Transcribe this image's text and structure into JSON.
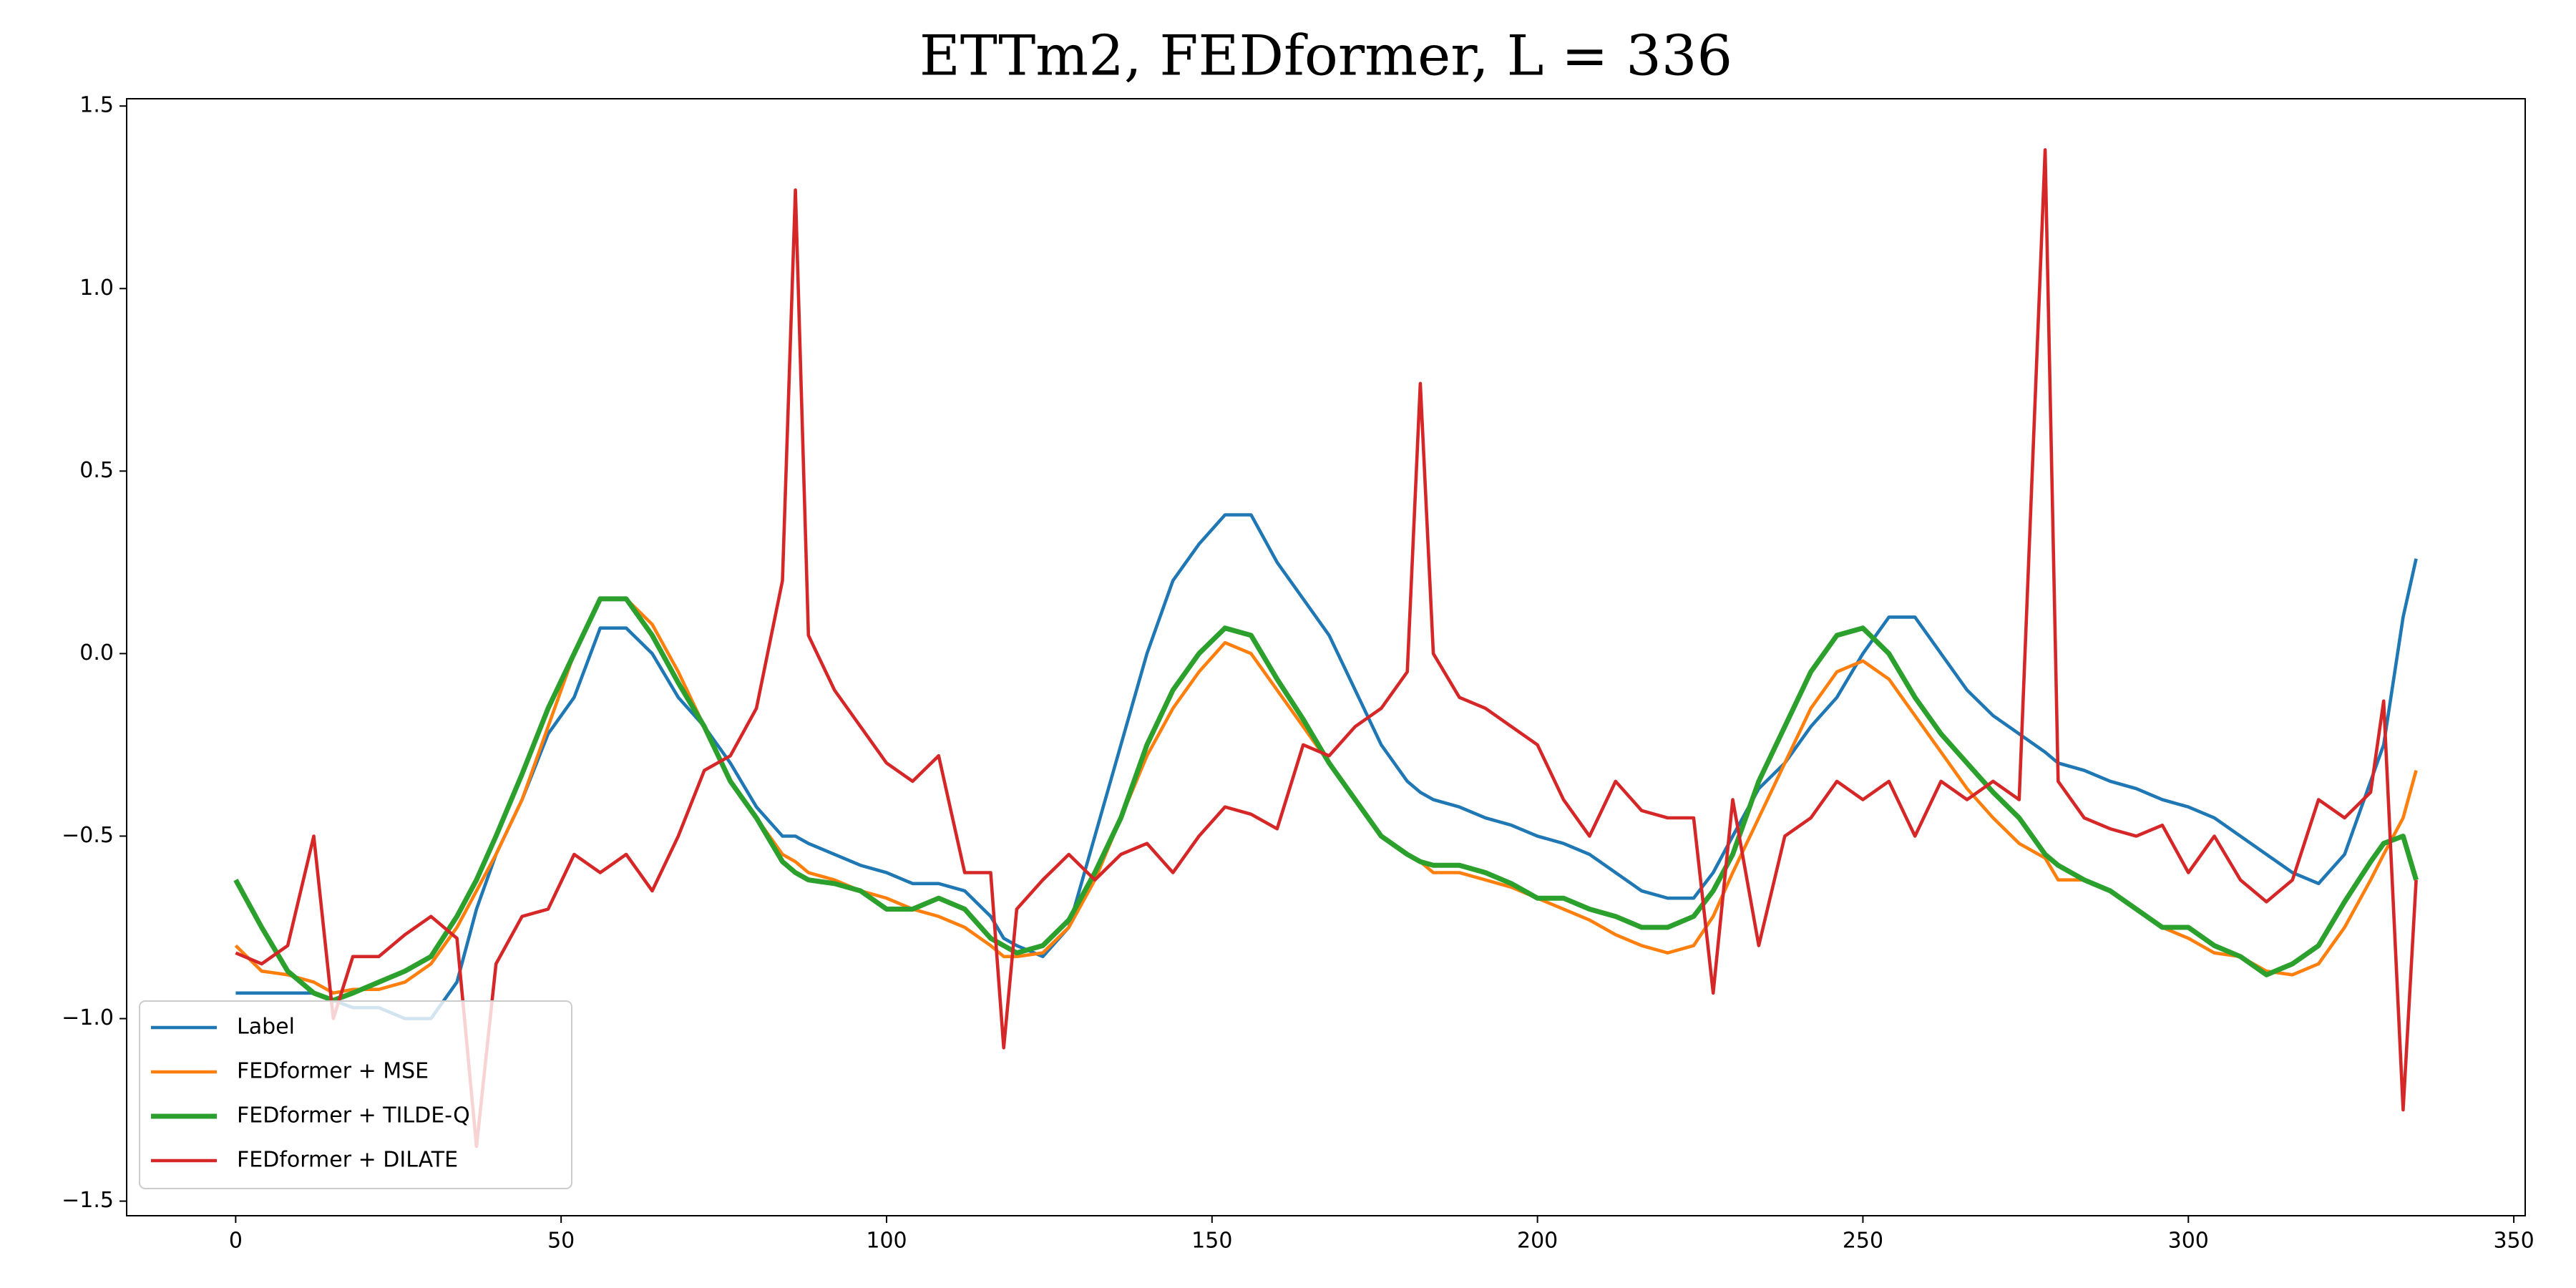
{
  "chart_data": {
    "type": "line",
    "title": "ETTm2, FEDformer, L = 336",
    "x": [
      0,
      4,
      8,
      12,
      15,
      18,
      22,
      26,
      30,
      34,
      37,
      40,
      44,
      48,
      52,
      56,
      60,
      64,
      68,
      72,
      76,
      80,
      84,
      86,
      88,
      92,
      96,
      100,
      104,
      108,
      112,
      116,
      118,
      120,
      124,
      128,
      132,
      136,
      140,
      144,
      148,
      152,
      156,
      160,
      164,
      168,
      172,
      176,
      180,
      182,
      184,
      188,
      192,
      196,
      200,
      204,
      208,
      212,
      216,
      220,
      224,
      227,
      230,
      234,
      238,
      242,
      246,
      250,
      254,
      258,
      262,
      266,
      270,
      274,
      278,
      280,
      284,
      288,
      292,
      296,
      300,
      304,
      308,
      312,
      316,
      320,
      324,
      328,
      330,
      333,
      335
    ],
    "series": [
      {
        "name": "Label",
        "color": "#1f77b4",
        "values": [
          -0.93,
          -0.93,
          -0.93,
          -0.93,
          -0.95,
          -0.97,
          -0.97,
          -1.0,
          -1.0,
          -0.9,
          -0.7,
          -0.55,
          -0.4,
          -0.22,
          -0.12,
          0.07,
          0.07,
          0.0,
          -0.12,
          -0.2,
          -0.3,
          -0.42,
          -0.5,
          -0.5,
          -0.52,
          -0.55,
          -0.58,
          -0.6,
          -0.63,
          -0.63,
          -0.65,
          -0.72,
          -0.78,
          -0.8,
          -0.83,
          -0.75,
          -0.5,
          -0.25,
          0.0,
          0.2,
          0.3,
          0.38,
          0.38,
          0.25,
          0.15,
          0.05,
          -0.1,
          -0.25,
          -0.35,
          -0.38,
          -0.4,
          -0.42,
          -0.45,
          -0.47,
          -0.5,
          -0.52,
          -0.55,
          -0.6,
          -0.65,
          -0.67,
          -0.67,
          -0.6,
          -0.5,
          -0.37,
          -0.3,
          -0.2,
          -0.12,
          0.0,
          0.1,
          0.1,
          0.0,
          -0.1,
          -0.17,
          -0.22,
          -0.27,
          -0.3,
          -0.32,
          -0.35,
          -0.37,
          -0.4,
          -0.42,
          -0.45,
          -0.5,
          -0.55,
          -0.6,
          -0.63,
          -0.55,
          -0.35,
          -0.25,
          0.1,
          0.26
        ]
      },
      {
        "name": "FEDformer + MSE",
        "color": "#ff7f0e",
        "values": [
          -0.8,
          -0.87,
          -0.88,
          -0.9,
          -0.93,
          -0.92,
          -0.92,
          -0.9,
          -0.85,
          -0.75,
          -0.65,
          -0.55,
          -0.4,
          -0.2,
          0.0,
          0.15,
          0.15,
          0.08,
          -0.05,
          -0.2,
          -0.35,
          -0.45,
          -0.55,
          -0.57,
          -0.6,
          -0.62,
          -0.65,
          -0.67,
          -0.7,
          -0.72,
          -0.75,
          -0.8,
          -0.83,
          -0.83,
          -0.82,
          -0.75,
          -0.62,
          -0.45,
          -0.28,
          -0.15,
          -0.05,
          0.03,
          0.0,
          -0.1,
          -0.2,
          -0.3,
          -0.4,
          -0.5,
          -0.55,
          -0.57,
          -0.6,
          -0.6,
          -0.62,
          -0.64,
          -0.67,
          -0.7,
          -0.73,
          -0.77,
          -0.8,
          -0.82,
          -0.8,
          -0.72,
          -0.6,
          -0.45,
          -0.3,
          -0.15,
          -0.05,
          -0.02,
          -0.07,
          -0.17,
          -0.27,
          -0.37,
          -0.45,
          -0.52,
          -0.56,
          -0.62,
          -0.62,
          -0.65,
          -0.7,
          -0.75,
          -0.78,
          -0.82,
          -0.83,
          -0.87,
          -0.88,
          -0.85,
          -0.75,
          -0.62,
          -0.55,
          -0.45,
          -0.32
        ]
      },
      {
        "name": "FEDformer + TILDE-Q",
        "color": "#2ca02c",
        "values": [
          -0.62,
          -0.75,
          -0.87,
          -0.93,
          -0.95,
          -0.93,
          -0.9,
          -0.87,
          -0.83,
          -0.72,
          -0.62,
          -0.5,
          -0.33,
          -0.15,
          0.0,
          0.15,
          0.15,
          0.05,
          -0.08,
          -0.2,
          -0.35,
          -0.45,
          -0.57,
          -0.6,
          -0.62,
          -0.63,
          -0.65,
          -0.7,
          -0.7,
          -0.67,
          -0.7,
          -0.78,
          -0.8,
          -0.82,
          -0.8,
          -0.73,
          -0.6,
          -0.45,
          -0.25,
          -0.1,
          0.0,
          0.07,
          0.05,
          -0.07,
          -0.18,
          -0.3,
          -0.4,
          -0.5,
          -0.55,
          -0.57,
          -0.58,
          -0.58,
          -0.6,
          -0.63,
          -0.67,
          -0.67,
          -0.7,
          -0.72,
          -0.75,
          -0.75,
          -0.72,
          -0.65,
          -0.55,
          -0.35,
          -0.2,
          -0.05,
          0.05,
          0.07,
          0.0,
          -0.12,
          -0.22,
          -0.3,
          -0.38,
          -0.45,
          -0.55,
          -0.58,
          -0.62,
          -0.65,
          -0.7,
          -0.75,
          -0.75,
          -0.8,
          -0.83,
          -0.88,
          -0.85,
          -0.8,
          -0.68,
          -0.57,
          -0.52,
          -0.5,
          -0.62
        ]
      },
      {
        "name": "FEDformer + DILATE",
        "color": "#d62728",
        "values": [
          -0.82,
          -0.85,
          -0.8,
          -0.5,
          -1.0,
          -0.83,
          -0.83,
          -0.77,
          -0.72,
          -0.78,
          -1.35,
          -0.85,
          -0.72,
          -0.7,
          -0.55,
          -0.6,
          -0.55,
          -0.65,
          -0.5,
          -0.32,
          -0.28,
          -0.15,
          0.2,
          1.27,
          0.05,
          -0.1,
          -0.2,
          -0.3,
          -0.35,
          -0.28,
          -0.6,
          -0.6,
          -1.08,
          -0.7,
          -0.62,
          -0.55,
          -0.62,
          -0.55,
          -0.52,
          -0.6,
          -0.5,
          -0.42,
          -0.44,
          -0.48,
          -0.25,
          -0.28,
          -0.2,
          -0.15,
          -0.05,
          0.74,
          0.0,
          -0.12,
          -0.15,
          -0.2,
          -0.25,
          -0.4,
          -0.5,
          -0.35,
          -0.43,
          -0.45,
          -0.45,
          -0.93,
          -0.4,
          -0.8,
          -0.5,
          -0.45,
          -0.35,
          -0.4,
          -0.35,
          -0.5,
          -0.35,
          -0.4,
          -0.35,
          -0.4,
          1.38,
          -0.35,
          -0.45,
          -0.48,
          -0.5,
          -0.47,
          -0.6,
          -0.5,
          -0.62,
          -0.68,
          -0.62,
          -0.4,
          -0.45,
          -0.38,
          -0.13,
          -1.25,
          -0.62
        ]
      }
    ],
    "xlim": [
      -16.75,
      351.75
    ],
    "ylim": [
      -1.54,
      1.52
    ],
    "xticks": [
      0,
      50,
      100,
      150,
      200,
      250,
      300,
      350
    ],
    "yticks": [
      {
        "value": -1.5,
        "label": "−1.5"
      },
      {
        "value": -1.0,
        "label": "−1.0"
      },
      {
        "value": -0.5,
        "label": "−0.5"
      },
      {
        "value": 0.0,
        "label": "0.0"
      },
      0.5,
      {
        "value": 1.0,
        "label": "1.0"
      },
      1.5
    ],
    "legend": "lower left"
  }
}
